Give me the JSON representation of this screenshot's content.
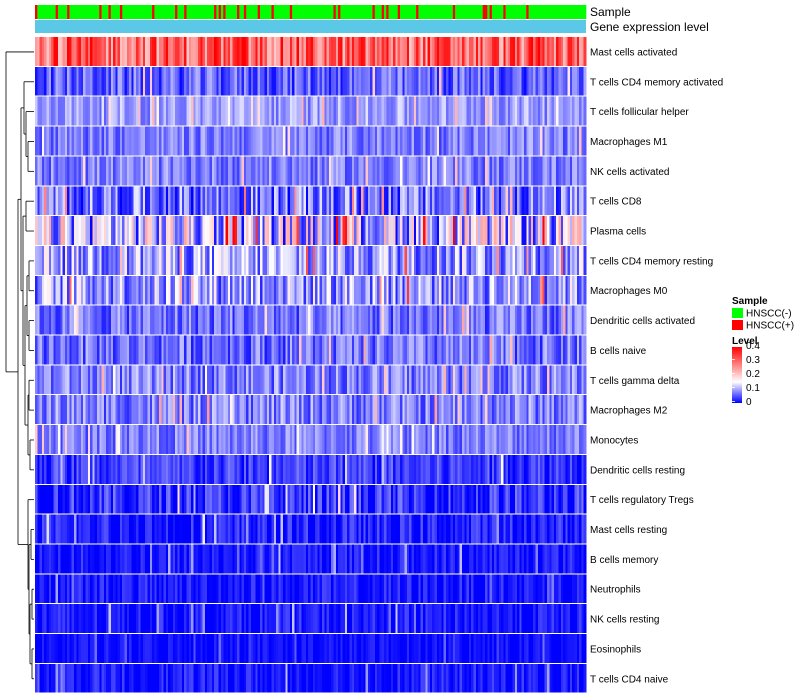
{
  "chart_data": {
    "type": "heatmap",
    "title": "",
    "annotation_rows": [
      {
        "label": "Sample",
        "legend_title": "Sample",
        "levels": [
          {
            "name": "HNSCC(-)",
            "color": "#00ff00"
          },
          {
            "name": "HNSCC(+)",
            "color": "#ff0000"
          }
        ]
      },
      {
        "label": "Gene expression level",
        "color": "#5bc8e8"
      }
    ],
    "sample_count": 240,
    "rows": [
      {
        "name": "Mast cells activated",
        "base": 0.29,
        "spread": 0.1
      },
      {
        "name": "T cells CD4 memory activated",
        "base": 0.05,
        "spread": 0.05
      },
      {
        "name": "T cells follicular helper",
        "base": 0.09,
        "spread": 0.04
      },
      {
        "name": "Macrophages M1",
        "base": 0.07,
        "spread": 0.04
      },
      {
        "name": "NK cells activated",
        "base": 0.07,
        "spread": 0.04
      },
      {
        "name": "T cells CD8",
        "base": 0.06,
        "spread": 0.07
      },
      {
        "name": "Plasma cells",
        "base": 0.11,
        "spread": 0.12
      },
      {
        "name": "T cells CD4 memory resting",
        "base": 0.09,
        "spread": 0.08
      },
      {
        "name": "Macrophages M0",
        "base": 0.09,
        "spread": 0.08
      },
      {
        "name": "Dendritic cells activated",
        "base": 0.06,
        "spread": 0.05
      },
      {
        "name": "B cells naive",
        "base": 0.06,
        "spread": 0.05
      },
      {
        "name": "T cells gamma delta",
        "base": 0.07,
        "spread": 0.05
      },
      {
        "name": "Macrophages M2",
        "base": 0.07,
        "spread": 0.05
      },
      {
        "name": "Monocytes",
        "base": 0.07,
        "spread": 0.04
      },
      {
        "name": "Dendritic cells resting",
        "base": 0.03,
        "spread": 0.04
      },
      {
        "name": "T cells regulatory  Tregs",
        "base": 0.02,
        "spread": 0.05
      },
      {
        "name": "Mast cells resting",
        "base": 0.01,
        "spread": 0.04
      },
      {
        "name": "B cells memory",
        "base": 0.01,
        "spread": 0.03
      },
      {
        "name": "Neutrophils",
        "base": 0.01,
        "spread": 0.03
      },
      {
        "name": "NK cells resting",
        "base": 0.01,
        "spread": 0.03
      },
      {
        "name": "Eosinophils",
        "base": 0.005,
        "spread": 0.02
      },
      {
        "name": "T cells CD4 naive",
        "base": 0.01,
        "spread": 0.03
      }
    ],
    "color_scale": {
      "legend_title": "Level",
      "min": 0,
      "mid": 0.15,
      "max": 0.4,
      "colors": [
        "#0000ff",
        "#ffffff",
        "#ff0000"
      ],
      "ticks": [
        "0.4",
        "0.3",
        "0.2",
        "0.1",
        "0"
      ],
      "tick_values": [
        0.4,
        0.3,
        0.2,
        0.1,
        0
      ]
    }
  }
}
